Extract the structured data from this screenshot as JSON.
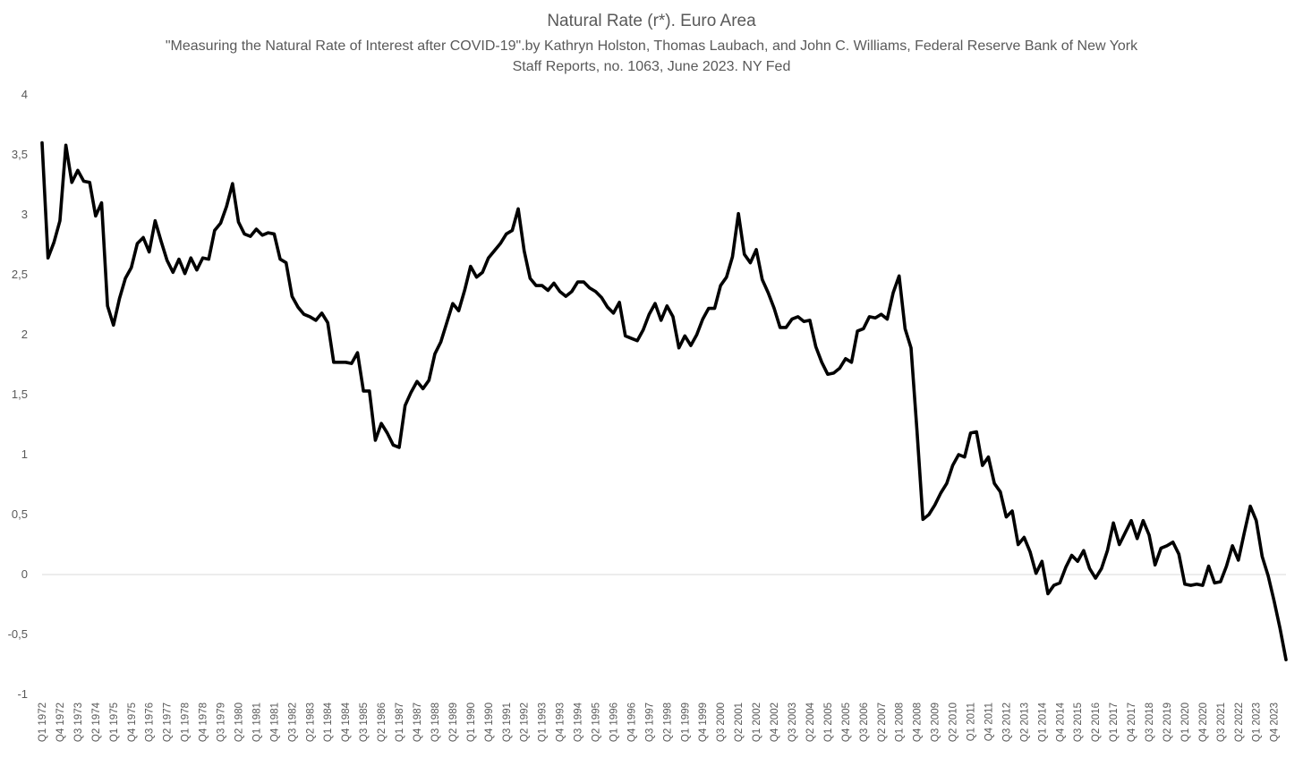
{
  "chart_data": {
    "type": "line",
    "title": "Natural Rate (r*). Euro Area",
    "subtitle": "\"Measuring the Natural Rate of Interest after COVID-19\".by Kathryn Holston, Thomas Laubach, and John C. Williams, Federal Reserve Bank of New York Staff Reports, no. 1063, June 2023.   NY Fed",
    "xlabel": "",
    "ylabel": "",
    "ylim": [
      -1,
      4
    ],
    "yticks": [
      "-1",
      "-0,5",
      "0",
      "0,5",
      "1",
      "1,5",
      "2",
      "2,5",
      "3",
      "3,5",
      "4"
    ],
    "grid": false,
    "legend": "none",
    "line_color": "#000000",
    "zero_line_color": "#d9d9d9",
    "x_start": "Q1 1972",
    "x_end": "Q3 2024",
    "xtick_labels": [
      "Q1 1972",
      "Q4 1972",
      "Q3 1973",
      "Q2 1974",
      "Q1 1975",
      "Q4 1975",
      "Q3 1976",
      "Q2 1977",
      "Q1 1978",
      "Q4 1978",
      "Q3 1979",
      "Q2 1980",
      "Q1 1981",
      "Q4 1981",
      "Q3 1982",
      "Q2 1983",
      "Q1 1984",
      "Q4 1984",
      "Q3 1985",
      "Q2 1986",
      "Q1 1987",
      "Q4 1987",
      "Q3 1988",
      "Q2 1989",
      "Q1 1990",
      "Q4 1990",
      "Q3 1991",
      "Q2 1992",
      "Q1 1993",
      "Q4 1993",
      "Q3 1994",
      "Q2 1995",
      "Q1 1996",
      "Q4 1996",
      "Q3 1997",
      "Q2 1998",
      "Q1 1999",
      "Q4 1999",
      "Q3 2000",
      "Q2 2001",
      "Q1 2002",
      "Q4 2002",
      "Q3 2003",
      "Q2 2004",
      "Q1 2005",
      "Q4 2005",
      "Q3 2006",
      "Q2 2007",
      "Q1 2008",
      "Q4 2008",
      "Q3 2009",
      "Q2 2010",
      "Q1 2011",
      "Q4 2011",
      "Q3 2012",
      "Q2 2013",
      "Q1 2014",
      "Q4 2014",
      "Q3 2015",
      "Q2 2016",
      "Q1 2017",
      "Q4 2017",
      "Q3 2018",
      "Q2 2019",
      "Q1 2020",
      "Q4 2020",
      "Q3 2021",
      "Q2 2022",
      "Q1 2023",
      "Q4 2023"
    ],
    "series": [
      {
        "values": [
          3.6,
          2.64,
          2.77,
          2.95,
          3.58,
          3.27,
          3.37,
          3.28,
          3.27,
          2.99,
          3.1,
          2.24,
          2.08,
          2.3,
          2.47,
          2.56,
          2.76,
          2.81,
          2.69,
          2.95,
          2.78,
          2.62,
          2.52,
          2.63,
          2.51,
          2.64,
          2.54,
          2.64,
          2.63,
          2.87,
          2.93,
          3.07,
          3.26,
          2.94,
          2.84,
          2.82,
          2.88,
          2.83,
          2.85,
          2.84,
          2.63,
          2.6,
          2.32,
          2.23,
          2.17,
          2.15,
          2.12,
          2.18,
          2.1,
          1.77,
          1.77,
          1.77,
          1.76,
          1.85,
          1.53,
          1.53,
          1.12,
          1.26,
          1.18,
          1.08,
          1.06,
          1.41,
          1.52,
          1.61,
          1.55,
          1.62,
          1.84,
          1.94,
          2.1,
          2.26,
          2.2,
          2.37,
          2.57,
          2.48,
          2.52,
          2.64,
          2.7,
          2.76,
          2.84,
          2.87,
          3.05,
          2.7,
          2.47,
          2.41,
          2.41,
          2.37,
          2.43,
          2.36,
          2.32,
          2.36,
          2.44,
          2.44,
          2.39,
          2.36,
          2.31,
          2.23,
          2.18,
          2.27,
          1.99,
          1.97,
          1.95,
          2.04,
          2.17,
          2.26,
          2.12,
          2.24,
          2.15,
          1.89,
          1.99,
          1.91,
          2.0,
          2.13,
          2.22,
          2.22,
          2.41,
          2.48,
          2.65,
          3.01,
          2.67,
          2.6,
          2.71,
          2.46,
          2.35,
          2.22,
          2.06,
          2.06,
          2.13,
          2.15,
          2.11,
          2.12,
          1.9,
          1.77,
          1.67,
          1.68,
          1.72,
          1.8,
          1.77,
          2.03,
          2.05,
          2.15,
          2.14,
          2.17,
          2.13,
          2.35,
          2.49,
          2.05,
          1.89,
          1.2,
          0.46,
          0.5,
          0.58,
          0.68,
          0.76,
          0.91,
          1.0,
          0.98,
          1.18,
          1.19,
          0.91,
          0.98,
          0.76,
          0.69,
          0.48,
          0.53,
          0.25,
          0.31,
          0.19,
          0.01,
          0.11,
          -0.16,
          -0.09,
          -0.07,
          0.06,
          0.16,
          0.11,
          0.2,
          0.05,
          -0.03,
          0.05,
          0.2,
          0.43,
          0.25,
          0.35,
          0.45,
          0.3,
          0.45,
          0.33,
          0.08,
          0.22,
          0.24,
          0.27,
          0.17,
          -0.08,
          -0.09,
          -0.08,
          -0.09,
          0.07,
          -0.07,
          -0.06,
          0.07,
          0.24,
          0.12,
          0.35,
          0.57,
          0.45,
          0.15,
          -0.01,
          -0.22,
          -0.45,
          -0.71
        ]
      }
    ]
  }
}
